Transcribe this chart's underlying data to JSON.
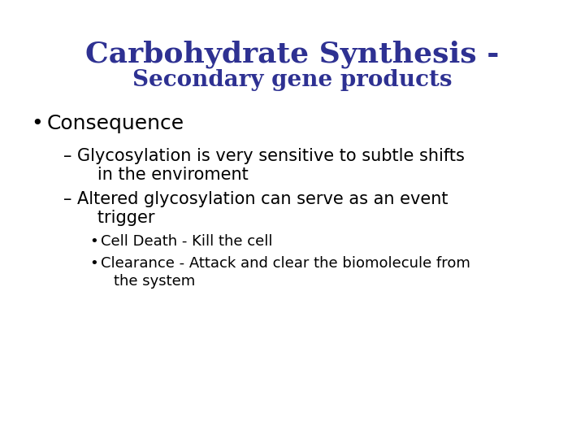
{
  "title_line1": "Carbohydrate Synthesis -",
  "title_line2": "Secondary gene products",
  "title_color": "#2e3192",
  "title1_fontsize": 26,
  "title2_fontsize": 20,
  "background_color": "#ffffff",
  "bullet1": "Consequence",
  "bullet1_color": "#000000",
  "bullet1_fontsize": 18,
  "dash1_line1": "– Glycosylation is very sensitive to subtle shifts",
  "dash1_line2": "   in the enviroment",
  "dash2_line1": "– Altered glycosylation can serve as an event",
  "dash2_line2": "   trigger",
  "sub_bullet1": "Cell Death - Kill the cell",
  "sub_bullet2_line1": "Clearance - Attack and clear the biomolecule from",
  "sub_bullet2_line2": "the system",
  "dash_fontsize": 15,
  "sub_bullet_fontsize": 13,
  "text_color": "#000000"
}
